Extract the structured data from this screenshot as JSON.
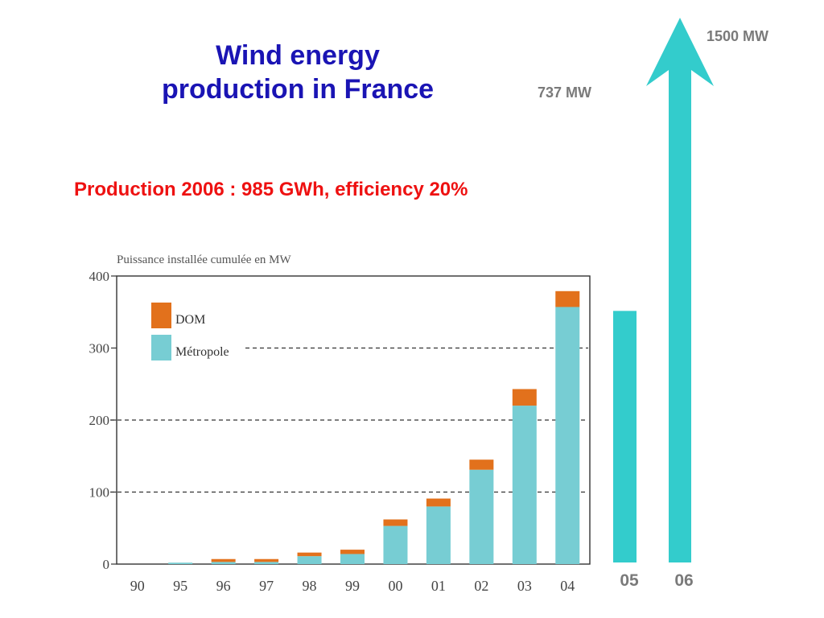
{
  "slide": {
    "title_line1": "Wind energy",
    "title_line2": "production in France",
    "subtitle": "Production 2006 : 985 GWh, efficiency 20%"
  },
  "colors": {
    "title": "#1a14b4",
    "subtitle": "#ee1111",
    "metropole": "#77cdd3",
    "dom": "#e2711c",
    "big_bars": "#33cccc",
    "labels_gray": "#7a7a7a"
  },
  "chart_data": [
    {
      "type": "bar",
      "stacked": true,
      "title": "Puissance installée cumulée en MW",
      "categories": [
        "90",
        "95",
        "96",
        "97",
        "98",
        "99",
        "00",
        "01",
        "02",
        "03",
        "04"
      ],
      "series": [
        {
          "name": "Métropole",
          "values": [
            0,
            2,
            3,
            3,
            11,
            14,
            53,
            80,
            131,
            220,
            357
          ]
        },
        {
          "name": "DOM",
          "values": [
            0,
            0,
            4,
            4,
            5,
            6,
            9,
            11,
            14,
            23,
            22
          ]
        }
      ],
      "ylim": [
        0,
        400
      ],
      "yticks": [
        0,
        100,
        200,
        300,
        400
      ],
      "reference_lines": [
        100,
        200,
        300
      ],
      "legend": "top-left",
      "xlabel": "",
      "ylabel": ""
    },
    {
      "type": "bar",
      "categories": [
        "05",
        "06"
      ],
      "values": [
        737,
        1500
      ],
      "value_labels": [
        "737 MW",
        "1500 MW"
      ],
      "style": "arrow-on-last"
    }
  ]
}
